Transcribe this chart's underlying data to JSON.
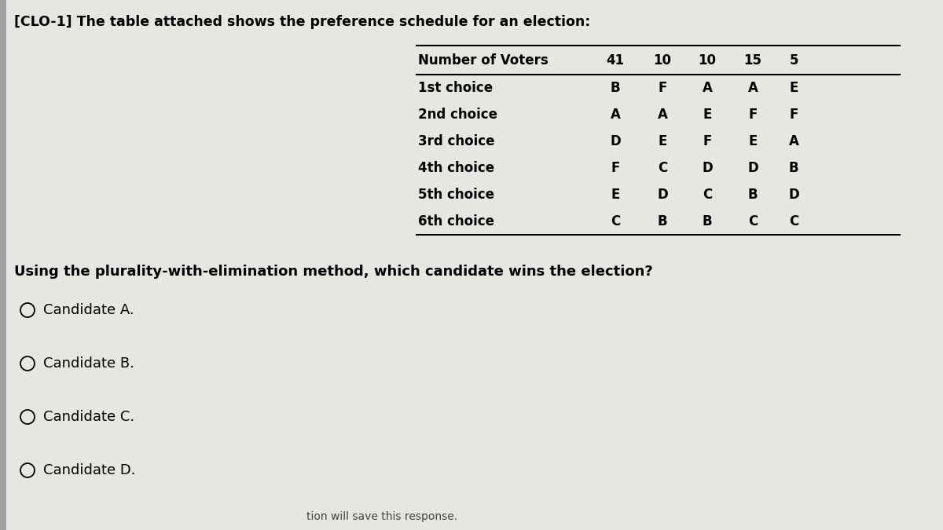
{
  "title": "[CLO-1] The table attached shows the preference schedule for an election:",
  "title_fontsize": 12.5,
  "bg_color": "#c8c5c2",
  "panel_color": "#e8e6e3",
  "table_header": [
    "Number of Voters",
    "41",
    "10",
    "10",
    "15",
    "5"
  ],
  "row_labels": [
    "1st choice",
    "2nd choice",
    "3rd choice",
    "4th choice",
    "5th choice",
    "6th choice"
  ],
  "table_data": [
    [
      "B",
      "F",
      "A",
      "A",
      "E"
    ],
    [
      "A",
      "A",
      "E",
      "F",
      "F"
    ],
    [
      "D",
      "E",
      "F",
      "E",
      "A"
    ],
    [
      "F",
      "C",
      "D",
      "D",
      "B"
    ],
    [
      "E",
      "D",
      "C",
      "B",
      "D"
    ],
    [
      "C",
      "B",
      "B",
      "C",
      "C"
    ]
  ],
  "question": "Using the plurality-with-elimination method, which candidate wins the election?",
  "question_fontsize": 13,
  "options": [
    "Candidate A.",
    "Candidate B.",
    "Candidate C.",
    "Candidate D."
  ],
  "options_fontsize": 13,
  "footer": "tion will save this response.",
  "footer_fontsize": 10
}
